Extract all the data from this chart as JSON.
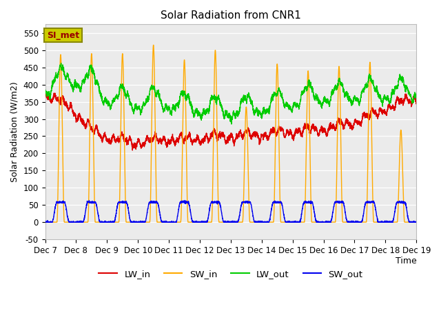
{
  "title": "Solar Radiation from CNR1",
  "xlabel": "Time",
  "ylabel": "Solar Radiation (W/m2)",
  "ylim": [
    -50,
    575
  ],
  "yticks": [
    -50,
    0,
    50,
    100,
    150,
    200,
    250,
    300,
    350,
    400,
    450,
    500,
    550
  ],
  "plot_bg": "#ebebeb",
  "colors": {
    "LW_in": "#dd0000",
    "SW_in": "#ffaa00",
    "LW_out": "#00cc00",
    "SW_out": "#0000ee"
  },
  "legend_box_text": "SI_met",
  "line_width": 1.0
}
